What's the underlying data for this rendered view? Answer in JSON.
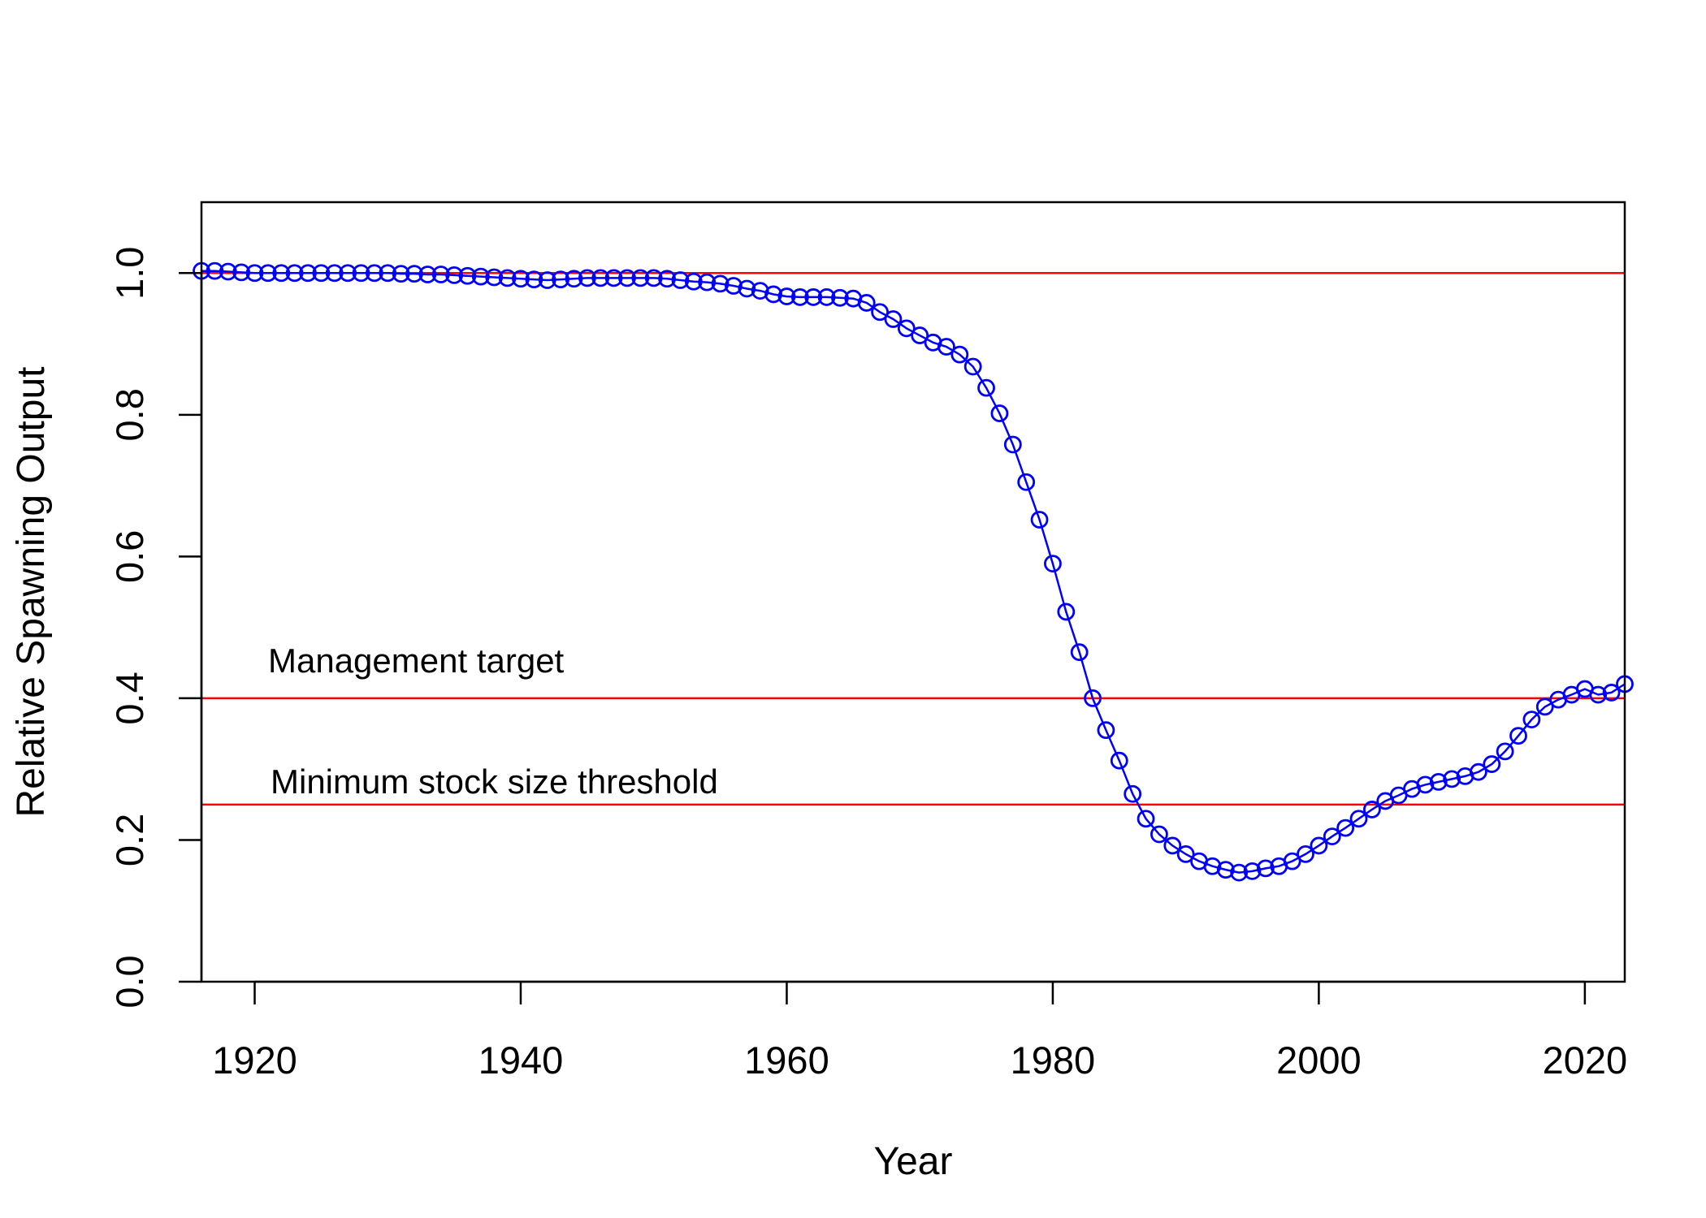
{
  "chart_data": {
    "type": "line",
    "title": "",
    "xlabel": "Year",
    "ylabel": "Relative Spawning Output",
    "xlim": [
      1916,
      2023
    ],
    "ylim": [
      0,
      1.1
    ],
    "x_ticks": [
      1920,
      1940,
      1960,
      1980,
      2000,
      2020
    ],
    "y_ticks": [
      0.0,
      0.2,
      0.4,
      0.6,
      0.8,
      1.0
    ],
    "x_tick_labels": [
      "1920",
      "1940",
      "1960",
      "1980",
      "2000",
      "2020"
    ],
    "y_tick_labels": [
      "0.0",
      "0.2",
      "0.4",
      "0.6",
      "0.8",
      "1.0"
    ],
    "grid": false,
    "legend": "none",
    "series": [
      {
        "color": "#0000ff",
        "marker": "open-circle",
        "x": [
          1916,
          1917,
          1918,
          1919,
          1920,
          1921,
          1922,
          1923,
          1924,
          1925,
          1926,
          1927,
          1928,
          1929,
          1930,
          1931,
          1932,
          1933,
          1934,
          1935,
          1936,
          1937,
          1938,
          1939,
          1940,
          1941,
          1942,
          1943,
          1944,
          1945,
          1946,
          1947,
          1948,
          1949,
          1950,
          1951,
          1952,
          1953,
          1954,
          1955,
          1956,
          1957,
          1958,
          1959,
          1960,
          1961,
          1962,
          1963,
          1964,
          1965,
          1966,
          1967,
          1968,
          1969,
          1970,
          1971,
          1972,
          1973,
          1974,
          1975,
          1976,
          1977,
          1978,
          1979,
          1980,
          1981,
          1982,
          1983,
          1984,
          1985,
          1986,
          1987,
          1988,
          1989,
          1990,
          1991,
          1992,
          1993,
          1994,
          1995,
          1996,
          1997,
          1998,
          1999,
          2000,
          2001,
          2002,
          2003,
          2004,
          2005,
          2006,
          2007,
          2008,
          2009,
          2010,
          2011,
          2012,
          2013,
          2014,
          2015,
          2016,
          2017,
          2018,
          2019,
          2020,
          2021,
          2022,
          2023
        ],
        "values": [
          1.003,
          1.003,
          1.002,
          1.001,
          1.0,
          1.0,
          1.0,
          1.0,
          1.0,
          1.0,
          1.0,
          1.0,
          1.0,
          1.0,
          1.0,
          0.999,
          0.999,
          0.998,
          0.998,
          0.997,
          0.996,
          0.995,
          0.994,
          0.993,
          0.992,
          0.991,
          0.99,
          0.991,
          0.992,
          0.993,
          0.993,
          0.993,
          0.993,
          0.993,
          0.993,
          0.992,
          0.99,
          0.988,
          0.987,
          0.985,
          0.982,
          0.978,
          0.975,
          0.97,
          0.967,
          0.966,
          0.966,
          0.966,
          0.965,
          0.964,
          0.958,
          0.945,
          0.935,
          0.922,
          0.912,
          0.902,
          0.896,
          0.885,
          0.868,
          0.838,
          0.802,
          0.758,
          0.705,
          0.652,
          0.59,
          0.522,
          0.465,
          0.4,
          0.355,
          0.312,
          0.265,
          0.23,
          0.208,
          0.192,
          0.18,
          0.17,
          0.163,
          0.158,
          0.154,
          0.156,
          0.16,
          0.163,
          0.17,
          0.18,
          0.192,
          0.205,
          0.217,
          0.23,
          0.243,
          0.255,
          0.263,
          0.272,
          0.278,
          0.282,
          0.286,
          0.29,
          0.296,
          0.307,
          0.325,
          0.347,
          0.37,
          0.388,
          0.398,
          0.405,
          0.413,
          0.405,
          0.408,
          0.42
        ]
      }
    ],
    "reference_lines": [
      {
        "y": 1.0,
        "color": "#ff0000",
        "label": ""
      },
      {
        "y": 0.4,
        "color": "#ff0000",
        "label": "Management target"
      },
      {
        "y": 0.25,
        "color": "#ff0000",
        "label": "Minimum stock size threshold"
      }
    ]
  }
}
